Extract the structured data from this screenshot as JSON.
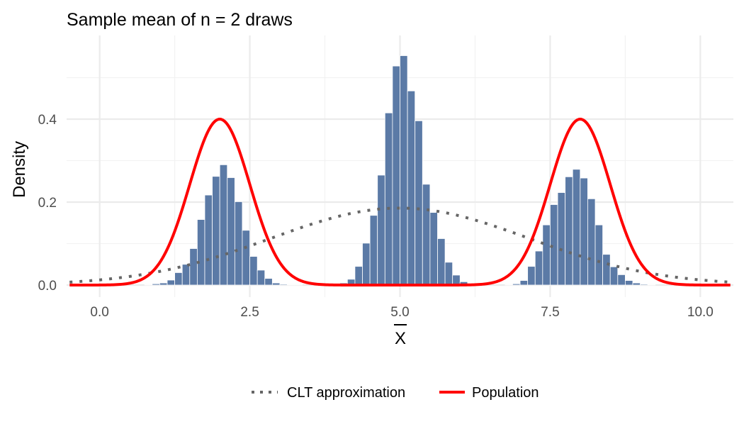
{
  "chart_data": {
    "type": "bar",
    "title": "Sample mean of n = 2 draws",
    "xlabel": "X",
    "xlabel_overline": true,
    "ylabel": "Density",
    "xlim": [
      -0.55,
      10.55
    ],
    "ylim": [
      0,
      0.6
    ],
    "grid": true,
    "x_ticks": [
      {
        "value": 0,
        "label": "0.0"
      },
      {
        "value": 2.5,
        "label": "2.5"
      },
      {
        "value": 5,
        "label": "5.0"
      },
      {
        "value": 7.5,
        "label": "7.5"
      },
      {
        "value": 10,
        "label": "10.0"
      }
    ],
    "y_ticks": [
      {
        "value": 0,
        "label": "0.0"
      },
      {
        "value": 0.2,
        "label": "0.2"
      },
      {
        "value": 0.4,
        "label": "0.4"
      }
    ],
    "histogram": {
      "bin_width": 0.125,
      "bin_starts": [
        0.75,
        0.875,
        1.0,
        1.125,
        1.25,
        1.375,
        1.5,
        1.625,
        1.75,
        1.875,
        2.0,
        2.125,
        2.25,
        2.375,
        2.5,
        2.625,
        2.75,
        2.875,
        3.0,
        3.125,
        3.25,
        3.875,
        4.0,
        4.125,
        4.25,
        4.375,
        4.5,
        4.625,
        4.75,
        4.875,
        5.0,
        5.125,
        5.25,
        5.375,
        5.5,
        5.625,
        5.75,
        5.875,
        6.0,
        6.125,
        6.75,
        6.875,
        7.0,
        7.125,
        7.25,
        7.375,
        7.5,
        7.625,
        7.75,
        7.875,
        8.0,
        8.125,
        8.25,
        8.375,
        8.5,
        8.625,
        8.75,
        8.875,
        9.0,
        9.125
      ],
      "densities": [
        0.001,
        0.003,
        0.005,
        0.012,
        0.03,
        0.05,
        0.088,
        0.158,
        0.217,
        0.262,
        0.29,
        0.259,
        0.201,
        0.132,
        0.069,
        0.036,
        0.016,
        0.005,
        0.002,
        0.001,
        0.001,
        0.001,
        0.005,
        0.014,
        0.045,
        0.101,
        0.168,
        0.265,
        0.415,
        0.528,
        0.553,
        0.468,
        0.396,
        0.243,
        0.175,
        0.112,
        0.055,
        0.024,
        0.008,
        0.002,
        0.001,
        0.003,
        0.011,
        0.045,
        0.082,
        0.145,
        0.194,
        0.223,
        0.261,
        0.279,
        0.258,
        0.208,
        0.145,
        0.074,
        0.044,
        0.025,
        0.011,
        0.005,
        0.002,
        0.001
      ]
    },
    "series": [
      {
        "name": "CLT approximation",
        "color": "#666666",
        "style": "dotted",
        "mean": 5,
        "sd": 2.15
      },
      {
        "name": "Population",
        "color": "#ff0000",
        "style": "solid",
        "modes": [
          2,
          8
        ],
        "sd": 0.5,
        "peak": 0.4
      }
    ],
    "bar_color": "#5b7aa6",
    "legend_position": "bottom"
  }
}
